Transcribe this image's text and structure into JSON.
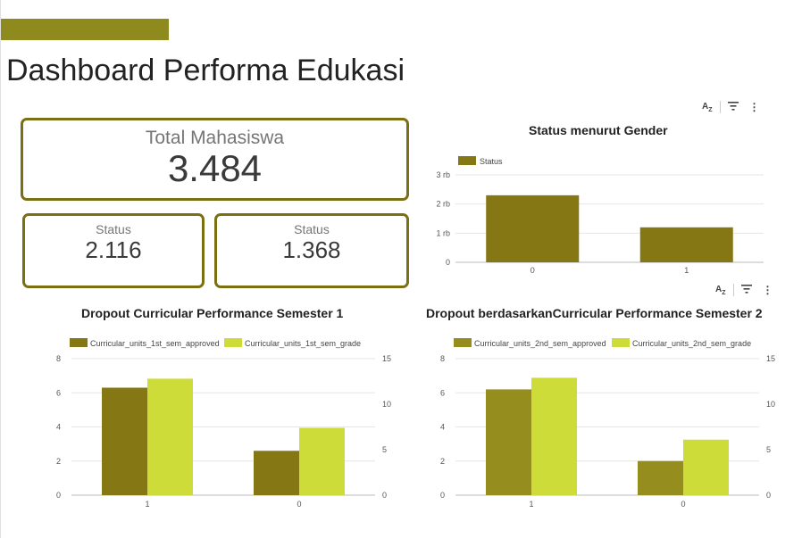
{
  "page": {
    "title": "Dashboard Performa Edukasi"
  },
  "scorecards": {
    "total": {
      "label": "Total Mahasiswa",
      "value": "3.484"
    },
    "status_a": {
      "label": "Status",
      "value": "2.116"
    },
    "status_b": {
      "label": "Status",
      "value": "1.368"
    }
  },
  "colors": {
    "accent": "#8f8a1e",
    "border": "#7a7012",
    "dark_olive": "#857714",
    "olive2": "#958e1f",
    "lime": "#cddc39"
  },
  "toolbar": {
    "sort_icon": "sort-az-icon",
    "filter_icon": "filter-icon",
    "more_icon": "more-vert-icon"
  },
  "chart_data": [
    {
      "type": "bar",
      "title": "Status menurut Gender",
      "categories": [
        "0",
        "1"
      ],
      "series": [
        {
          "name": "Status",
          "values": [
            2300,
            1200
          ],
          "color": "#857714"
        }
      ],
      "ylim": [
        0,
        3000
      ],
      "yticks": [
        "0",
        "1 rb",
        "2 rb",
        "3 rb"
      ],
      "legend": "top-left",
      "grid": true
    },
    {
      "type": "bar",
      "title": "Dropout Curricular Performance Semester 1",
      "categories": [
        "1",
        "0"
      ],
      "series": [
        {
          "name": "Curricular_units_1st_sem_approved",
          "values": [
            6.3,
            2.6
          ],
          "axis": "left",
          "color": "#857714"
        },
        {
          "name": "Curricular_units_1st_sem_grade",
          "values": [
            12.8,
            7.4
          ],
          "axis": "right",
          "color": "#cddc39"
        }
      ],
      "ylim": [
        0,
        8
      ],
      "ylim_right": [
        0,
        15
      ],
      "yticks": [
        "0",
        "2",
        "4",
        "6",
        "8"
      ],
      "yticks_right": [
        "0",
        "5",
        "10",
        "15"
      ],
      "legend": "top",
      "grid": true
    },
    {
      "type": "bar",
      "title": "Dropout berdasarkanCurricular Performance Semester 2",
      "categories": [
        "1",
        "0"
      ],
      "series": [
        {
          "name": "Curricular_units_2nd_sem_approved",
          "values": [
            6.2,
            2.0
          ],
          "axis": "left",
          "color": "#958e1f"
        },
        {
          "name": "Curricular_units_2nd_sem_grade",
          "values": [
            12.9,
            6.1
          ],
          "axis": "right",
          "color": "#cddc39"
        }
      ],
      "ylim": [
        0,
        8
      ],
      "ylim_right": [
        0,
        15
      ],
      "yticks": [
        "0",
        "2",
        "4",
        "6",
        "8"
      ],
      "yticks_right": [
        "0",
        "5",
        "10",
        "15"
      ],
      "legend": "top",
      "grid": true
    }
  ]
}
